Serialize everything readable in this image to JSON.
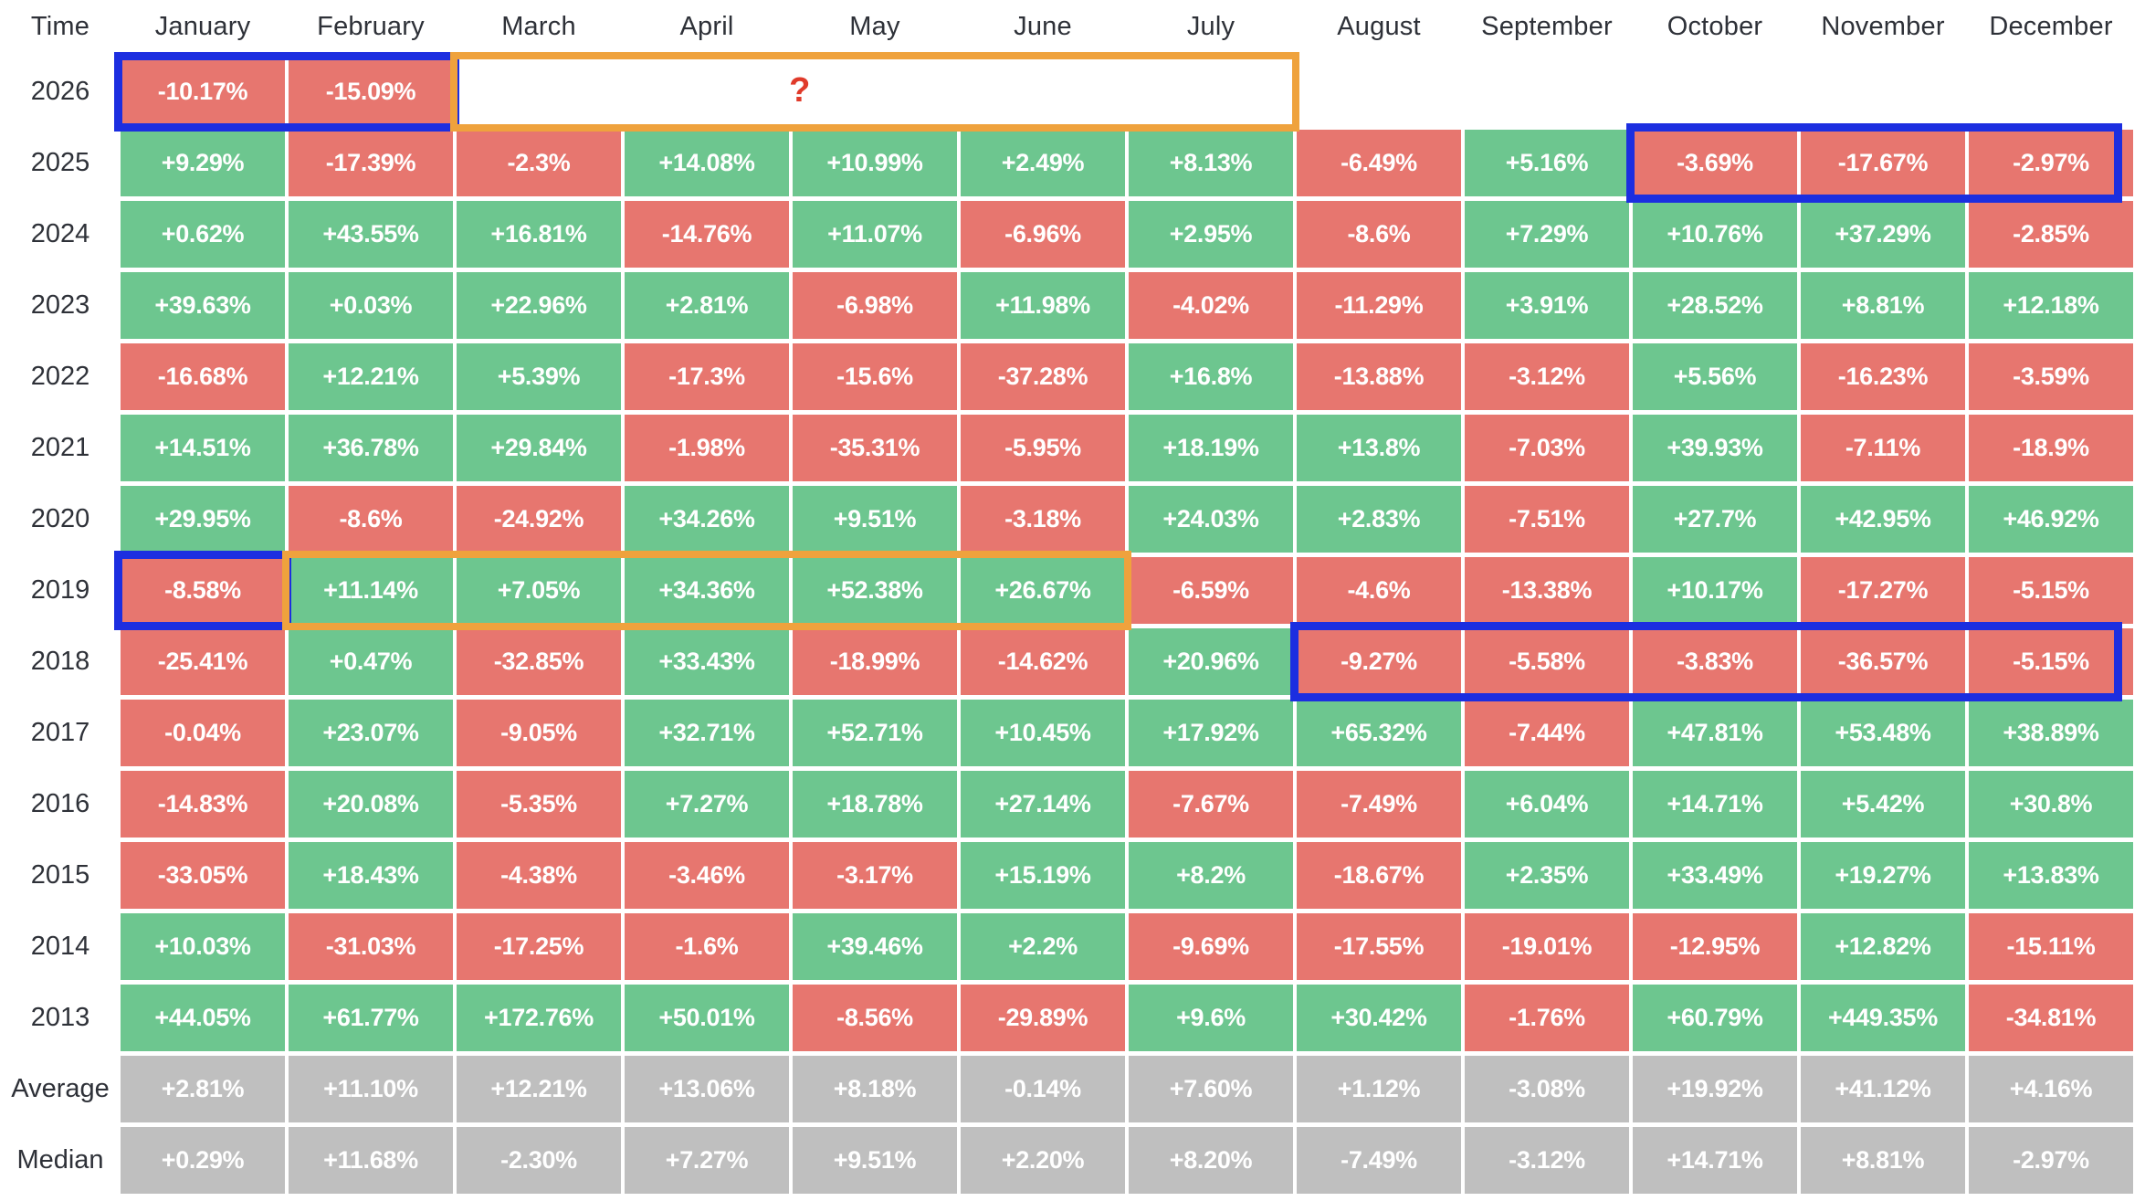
{
  "palette": {
    "positive_bg": "#6dc68f",
    "negative_bg": "#e7766f",
    "summary_bg": "#bfbfbf",
    "cell_text": "#ffffff",
    "label_text": "#2e3138",
    "highlight_blue": "#1c2ee0",
    "highlight_orange": "#efa23d",
    "question_mark_red": "#e03a2a"
  },
  "header": {
    "time_label": "Time",
    "months": [
      "January",
      "February",
      "March",
      "April",
      "May",
      "June",
      "July",
      "August",
      "September",
      "October",
      "November",
      "December"
    ]
  },
  "rows": [
    {
      "label": "2026",
      "kind": "year",
      "values": [
        "-10.17%",
        "-15.09%",
        "",
        "",
        "",
        "",
        "",
        "",
        "",
        "",
        "",
        ""
      ]
    },
    {
      "label": "2025",
      "kind": "year",
      "values": [
        "+9.29%",
        "-17.39%",
        "-2.3%",
        "+14.08%",
        "+10.99%",
        "+2.49%",
        "+8.13%",
        "-6.49%",
        "+5.16%",
        "-3.69%",
        "-17.67%",
        "-2.97%"
      ]
    },
    {
      "label": "2024",
      "kind": "year",
      "values": [
        "+0.62%",
        "+43.55%",
        "+16.81%",
        "-14.76%",
        "+11.07%",
        "-6.96%",
        "+2.95%",
        "-8.6%",
        "+7.29%",
        "+10.76%",
        "+37.29%",
        "-2.85%"
      ]
    },
    {
      "label": "2023",
      "kind": "year",
      "values": [
        "+39.63%",
        "+0.03%",
        "+22.96%",
        "+2.81%",
        "-6.98%",
        "+11.98%",
        "-4.02%",
        "-11.29%",
        "+3.91%",
        "+28.52%",
        "+8.81%",
        "+12.18%"
      ]
    },
    {
      "label": "2022",
      "kind": "year",
      "values": [
        "-16.68%",
        "+12.21%",
        "+5.39%",
        "-17.3%",
        "-15.6%",
        "-37.28%",
        "+16.8%",
        "-13.88%",
        "-3.12%",
        "+5.56%",
        "-16.23%",
        "-3.59%"
      ]
    },
    {
      "label": "2021",
      "kind": "year",
      "values": [
        "+14.51%",
        "+36.78%",
        "+29.84%",
        "-1.98%",
        "-35.31%",
        "-5.95%",
        "+18.19%",
        "+13.8%",
        "-7.03%",
        "+39.93%",
        "-7.11%",
        "-18.9%"
      ]
    },
    {
      "label": "2020",
      "kind": "year",
      "values": [
        "+29.95%",
        "-8.6%",
        "-24.92%",
        "+34.26%",
        "+9.51%",
        "-3.18%",
        "+24.03%",
        "+2.83%",
        "-7.51%",
        "+27.7%",
        "+42.95%",
        "+46.92%"
      ]
    },
    {
      "label": "2019",
      "kind": "year",
      "values": [
        "-8.58%",
        "+11.14%",
        "+7.05%",
        "+34.36%",
        "+52.38%",
        "+26.67%",
        "-6.59%",
        "-4.6%",
        "-13.38%",
        "+10.17%",
        "-17.27%",
        "-5.15%"
      ]
    },
    {
      "label": "2018",
      "kind": "year",
      "values": [
        "-25.41%",
        "+0.47%",
        "-32.85%",
        "+33.43%",
        "-18.99%",
        "-14.62%",
        "+20.96%",
        "-9.27%",
        "-5.58%",
        "-3.83%",
        "-36.57%",
        "-5.15%"
      ]
    },
    {
      "label": "2017",
      "kind": "year",
      "values": [
        "-0.04%",
        "+23.07%",
        "-9.05%",
        "+32.71%",
        "+52.71%",
        "+10.45%",
        "+17.92%",
        "+65.32%",
        "-7.44%",
        "+47.81%",
        "+53.48%",
        "+38.89%"
      ]
    },
    {
      "label": "2016",
      "kind": "year",
      "values": [
        "-14.83%",
        "+20.08%",
        "-5.35%",
        "+7.27%",
        "+18.78%",
        "+27.14%",
        "-7.67%",
        "-7.49%",
        "+6.04%",
        "+14.71%",
        "+5.42%",
        "+30.8%"
      ]
    },
    {
      "label": "2015",
      "kind": "year",
      "values": [
        "-33.05%",
        "+18.43%",
        "-4.38%",
        "-3.46%",
        "-3.17%",
        "+15.19%",
        "+8.2%",
        "-18.67%",
        "+2.35%",
        "+33.49%",
        "+19.27%",
        "+13.83%"
      ]
    },
    {
      "label": "2014",
      "kind": "year",
      "values": [
        "+10.03%",
        "-31.03%",
        "-17.25%",
        "-1.6%",
        "+39.46%",
        "+2.2%",
        "-9.69%",
        "-17.55%",
        "-19.01%",
        "-12.95%",
        "+12.82%",
        "-15.11%"
      ]
    },
    {
      "label": "2013",
      "kind": "year",
      "values": [
        "+44.05%",
        "+61.77%",
        "+172.76%",
        "+50.01%",
        "-8.56%",
        "-29.89%",
        "+9.6%",
        "+30.42%",
        "-1.76%",
        "+60.79%",
        "+449.35%",
        "-34.81%"
      ]
    },
    {
      "label": "Average",
      "kind": "summary",
      "values": [
        "+2.81%",
        "+11.10%",
        "+12.21%",
        "+13.06%",
        "+8.18%",
        "-0.14%",
        "+7.60%",
        "+1.12%",
        "-3.08%",
        "+19.92%",
        "+41.12%",
        "+4.16%"
      ]
    },
    {
      "label": "Median",
      "kind": "summary",
      "values": [
        "+0.29%",
        "+11.68%",
        "-2.30%",
        "+7.27%",
        "+9.51%",
        "+2.20%",
        "+8.20%",
        "-7.49%",
        "-3.12%",
        "+14.71%",
        "+8.81%",
        "-2.97%"
      ]
    }
  ],
  "highlights": [
    {
      "name": "blue-box-2026-jan-feb",
      "row": "2026",
      "from": "January",
      "to": "February",
      "color": "#1c2ee0",
      "border": 9
    },
    {
      "name": "orange-box-2026-mar-jul",
      "row": "2026",
      "from": "March",
      "to": "July",
      "color": "#efa23d",
      "border": 8,
      "question_mark": "?"
    },
    {
      "name": "blue-box-2025-oct-dec",
      "row": "2025",
      "from": "October",
      "to": "December",
      "color": "#1c2ee0",
      "border": 9,
      "flush_right": true
    },
    {
      "name": "blue-box-2019-jan",
      "row": "2019",
      "from": "January",
      "to": "January",
      "color": "#1c2ee0",
      "border": 9
    },
    {
      "name": "orange-box-2019-feb-jun",
      "row": "2019",
      "from": "February",
      "to": "June",
      "color": "#efa23d",
      "border": 8
    },
    {
      "name": "blue-box-2018-aug-dec",
      "row": "2018",
      "from": "August",
      "to": "December",
      "color": "#1c2ee0",
      "border": 9,
      "flush_right": true
    }
  ],
  "chart_data": {
    "type": "heatmap",
    "title": "Monthly returns heatmap (%) by year and month",
    "columns": [
      "January",
      "February",
      "March",
      "April",
      "May",
      "June",
      "July",
      "August",
      "September",
      "October",
      "November",
      "December"
    ],
    "rows": [
      "2026",
      "2025",
      "2024",
      "2023",
      "2022",
      "2021",
      "2020",
      "2019",
      "2018",
      "2017",
      "2016",
      "2015",
      "2014",
      "2013",
      "Average",
      "Median"
    ],
    "values": [
      [
        -10.17,
        -15.09,
        null,
        null,
        null,
        null,
        null,
        null,
        null,
        null,
        null,
        null
      ],
      [
        9.29,
        -17.39,
        -2.3,
        14.08,
        10.99,
        2.49,
        8.13,
        -6.49,
        5.16,
        -3.69,
        -17.67,
        -2.97
      ],
      [
        0.62,
        43.55,
        16.81,
        -14.76,
        11.07,
        -6.96,
        2.95,
        -8.6,
        7.29,
        10.76,
        37.29,
        -2.85
      ],
      [
        39.63,
        0.03,
        22.96,
        2.81,
        -6.98,
        11.98,
        -4.02,
        -11.29,
        3.91,
        28.52,
        8.81,
        12.18
      ],
      [
        -16.68,
        12.21,
        5.39,
        -17.3,
        -15.6,
        -37.28,
        16.8,
        -13.88,
        -3.12,
        5.56,
        -16.23,
        -3.59
      ],
      [
        14.51,
        36.78,
        29.84,
        -1.98,
        -35.31,
        -5.95,
        18.19,
        13.8,
        -7.03,
        39.93,
        -7.11,
        -18.9
      ],
      [
        29.95,
        -8.6,
        -24.92,
        34.26,
        9.51,
        -3.18,
        24.03,
        2.83,
        -7.51,
        27.7,
        42.95,
        46.92
      ],
      [
        -8.58,
        11.14,
        7.05,
        34.36,
        52.38,
        26.67,
        -6.59,
        -4.6,
        -13.38,
        10.17,
        -17.27,
        -5.15
      ],
      [
        -25.41,
        0.47,
        -32.85,
        33.43,
        -18.99,
        -14.62,
        20.96,
        -9.27,
        -5.58,
        -3.83,
        -36.57,
        -5.15
      ],
      [
        -0.04,
        23.07,
        -9.05,
        32.71,
        52.71,
        10.45,
        17.92,
        65.32,
        -7.44,
        47.81,
        53.48,
        38.89
      ],
      [
        -14.83,
        20.08,
        -5.35,
        7.27,
        18.78,
        27.14,
        -7.67,
        -7.49,
        6.04,
        14.71,
        5.42,
        30.8
      ],
      [
        -33.05,
        18.43,
        -4.38,
        -3.46,
        -3.17,
        15.19,
        8.2,
        -18.67,
        2.35,
        33.49,
        19.27,
        13.83
      ],
      [
        10.03,
        -31.03,
        -17.25,
        -1.6,
        39.46,
        2.2,
        -9.69,
        -17.55,
        -19.01,
        -12.95,
        12.82,
        -15.11
      ],
      [
        44.05,
        61.77,
        172.76,
        50.01,
        -8.56,
        -29.89,
        9.6,
        30.42,
        -1.76,
        60.79,
        449.35,
        -34.81
      ],
      [
        2.81,
        11.1,
        12.21,
        13.06,
        8.18,
        -0.14,
        7.6,
        1.12,
        -3.08,
        19.92,
        41.12,
        4.16
      ],
      [
        0.29,
        11.68,
        -2.3,
        7.27,
        9.51,
        2.2,
        8.2,
        -7.49,
        -3.12,
        14.71,
        8.81,
        -2.97
      ]
    ],
    "legend": "green = positive month, red = negative month, gray = summary rows",
    "annotations": [
      "blue rectangle: 2026 Jan-Feb",
      "orange rectangle with red ? : 2026 Mar-Jul (unknown future months)",
      "blue rectangle: 2025 Oct-Dec",
      "blue rectangle: 2019 Jan",
      "orange rectangle: 2019 Feb-Jun",
      "blue rectangle: 2018 Aug-Dec"
    ]
  }
}
